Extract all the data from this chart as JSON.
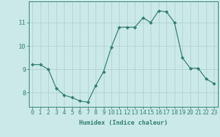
{
  "title": "",
  "xlabel": "Humidex (Indice chaleur)",
  "ylabel": "",
  "x_values": [
    0,
    1,
    2,
    3,
    4,
    5,
    6,
    7,
    8,
    9,
    10,
    11,
    12,
    13,
    14,
    15,
    16,
    17,
    18,
    19,
    20,
    21,
    22,
    23
  ],
  "y_values": [
    9.2,
    9.2,
    9.0,
    8.2,
    7.9,
    7.8,
    7.65,
    7.6,
    8.3,
    8.9,
    9.95,
    10.8,
    10.8,
    10.8,
    11.2,
    11.0,
    11.5,
    11.45,
    11.0,
    9.5,
    9.05,
    9.05,
    8.6,
    8.4
  ],
  "line_color": "#2e7d6e",
  "marker": "D",
  "marker_size": 2.2,
  "bg_color": "#cce9e9",
  "plot_bg_color": "#cce9e9",
  "grid_color": "#b0d0d0",
  "tick_color": "#2e7d6e",
  "label_color": "#2e7d6e",
  "ylim": [
    7.4,
    11.9
  ],
  "yticks": [
    8,
    9,
    10,
    11
  ],
  "xlim": [
    -0.5,
    23.5
  ],
  "xticks": [
    0,
    1,
    2,
    3,
    4,
    5,
    6,
    7,
    8,
    9,
    10,
    11,
    12,
    13,
    14,
    15,
    16,
    17,
    18,
    19,
    20,
    21,
    22,
    23
  ],
  "fontsize_label": 6.5,
  "fontsize_tick": 6.0
}
